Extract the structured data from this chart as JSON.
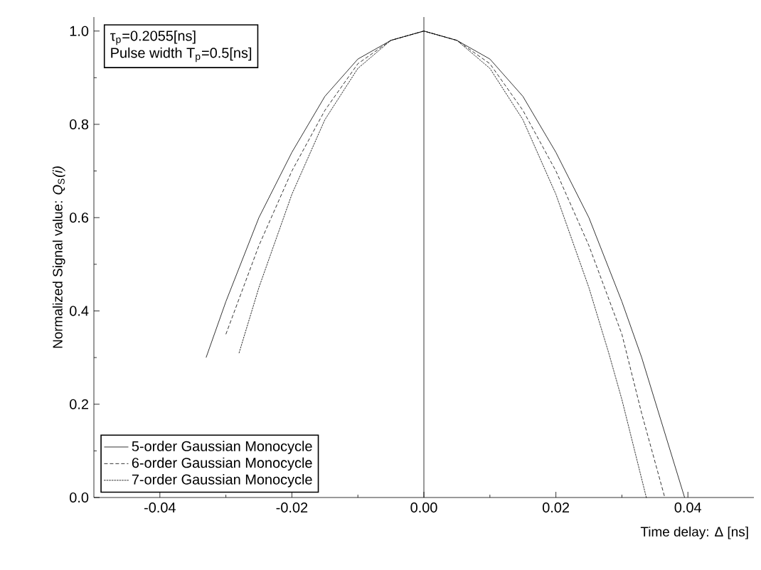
{
  "chart_data": {
    "type": "line",
    "xlabel": "Time delay: Δ [ns]",
    "ylabel": "Normalized Signal value: *Q*$_{S}$*(i)*",
    "annotations": [
      "τ$_{p}$=0.2055[ns]",
      "Pulse width T$_{p}$=0.5[ns]"
    ],
    "series": [
      {
        "name": "5-order Gaussian Monocycle",
        "color": "#000000",
        "line_style": "solid",
        "x": [
          -0.033,
          -0.03,
          -0.025,
          -0.02,
          -0.015,
          -0.01,
          -0.005,
          0,
          0.005,
          0.01,
          0.015,
          0.02,
          0.025,
          0.03,
          0.033,
          0.0395
        ],
        "values": [
          0.3,
          0.42,
          0.6,
          0.74,
          0.86,
          0.94,
          0.98,
          1.0,
          0.98,
          0.94,
          0.86,
          0.74,
          0.6,
          0.42,
          0.3,
          0.0
        ]
      },
      {
        "name": "6-order Gaussian Monocycle",
        "color": "#000000",
        "line_style": "dashed",
        "x": [
          -0.03,
          -0.025,
          -0.02,
          -0.015,
          -0.01,
          -0.005,
          0,
          0.005,
          0.01,
          0.015,
          0.02,
          0.025,
          0.03,
          0.033,
          0.0365
        ],
        "values": [
          0.35,
          0.54,
          0.7,
          0.83,
          0.93,
          0.98,
          1.0,
          0.98,
          0.93,
          0.83,
          0.7,
          0.54,
          0.35,
          0.18,
          0.0
        ]
      },
      {
        "name": "7-order Gaussian Monocycle",
        "color": "#000000",
        "line_style": "dotted",
        "x": [
          -0.028,
          -0.025,
          -0.02,
          -0.015,
          -0.01,
          -0.005,
          0,
          0.005,
          0.01,
          0.015,
          0.02,
          0.025,
          0.028,
          0.03,
          0.0337
        ],
        "values": [
          0.31,
          0.45,
          0.65,
          0.81,
          0.92,
          0.98,
          1.0,
          0.98,
          0.92,
          0.81,
          0.65,
          0.45,
          0.31,
          0.21,
          0.0
        ]
      }
    ],
    "xlim": [
      -0.05,
      0.05
    ],
    "ylim": [
      0,
      1.03
    ],
    "xticks": [
      -0.04,
      -0.02,
      {
        "value": 0,
        "label": "0.00"
      },
      0.02,
      0.04
    ],
    "yticks": [
      {
        "value": 0,
        "label": "0.0"
      },
      0.2,
      0.4,
      0.6,
      0.8,
      {
        "value": 1,
        "label": "1.0"
      }
    ],
    "ref_lines": [
      {
        "axis": "x",
        "value": 0,
        "color": "#000000"
      }
    ],
    "legend": "bottom left",
    "marker": "none"
  }
}
